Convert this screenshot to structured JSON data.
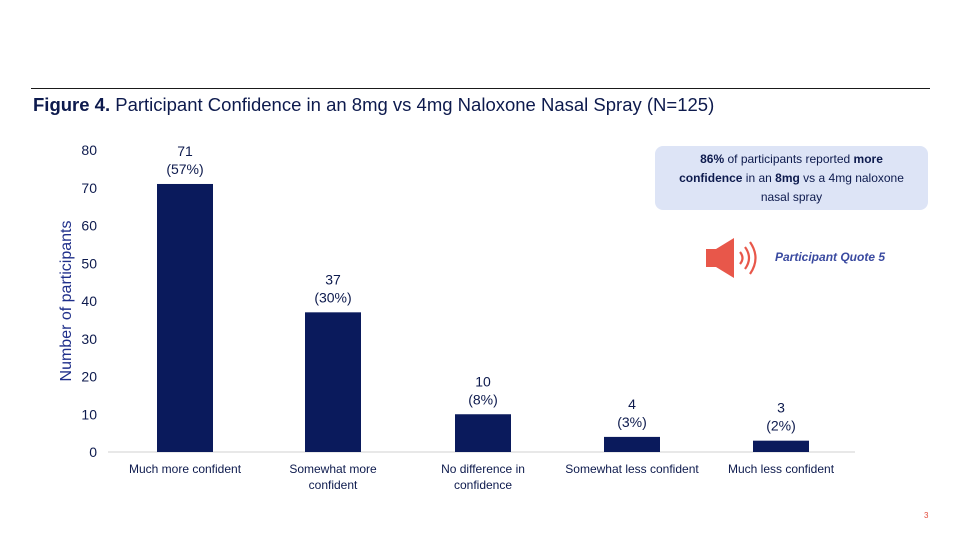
{
  "figure": {
    "label": "Figure 4.",
    "title": " Participant Confidence in an 8mg vs 4mg Naloxone Nasal Spray (N=125)"
  },
  "callout": {
    "p1": "86%",
    "p2": " of participants reported ",
    "p3": "more confidence",
    "p4": " in an ",
    "p5": "8mg",
    "p6": " vs a 4mg naloxone nasal spray"
  },
  "quote": {
    "label": "Participant Quote 5",
    "icon": "speaker-icon",
    "icon_color": "#e8574a"
  },
  "page_number": "3",
  "colors": {
    "bar": "#0a1a5c",
    "text": "#0d1a4d",
    "axis_label": "#1f2f8a",
    "axis": "#d0d0d0"
  },
  "chart_data": {
    "type": "bar",
    "categories": [
      [
        "Much more confident"
      ],
      [
        "Somewhat more",
        "confident"
      ],
      [
        "No difference in",
        "confidence"
      ],
      [
        "Somewhat less confident"
      ],
      [
        "Much less confident"
      ]
    ],
    "values": [
      71,
      37,
      10,
      4,
      3
    ],
    "percent_labels": [
      "(57%)",
      "(30%)",
      "(8%)",
      "(3%)",
      "(2%)"
    ],
    "ylabel": "Number of participants",
    "ylim": [
      0,
      80
    ],
    "yticks": [
      0,
      10,
      20,
      30,
      40,
      50,
      60,
      70,
      80
    ],
    "grid": false
  }
}
